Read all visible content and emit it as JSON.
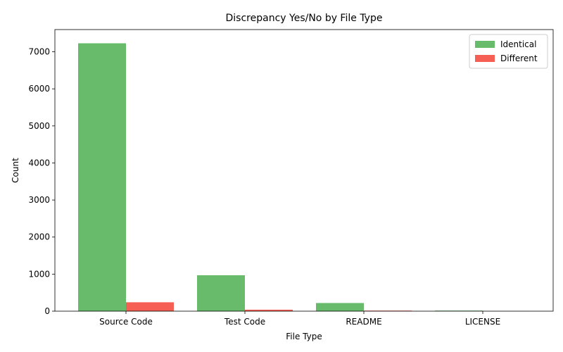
{
  "chart_data": {
    "type": "bar",
    "title": "Discrepancy Yes/No by File Type",
    "xlabel": "File Type",
    "ylabel": "Count",
    "categories": [
      "Source Code",
      "Test Code",
      "README",
      "LICENSE"
    ],
    "series": [
      {
        "name": "Identical",
        "color": "#4caf50",
        "values": [
          7230,
          970,
          220,
          15
        ]
      },
      {
        "name": "Different",
        "color": "#f44336",
        "values": [
          240,
          40,
          15,
          2
        ]
      }
    ],
    "ylim": [
      0,
      7600
    ],
    "yticks": [
      0,
      1000,
      2000,
      3000,
      4000,
      5000,
      6000,
      7000
    ],
    "grid": false,
    "legend_position": "top-right"
  }
}
